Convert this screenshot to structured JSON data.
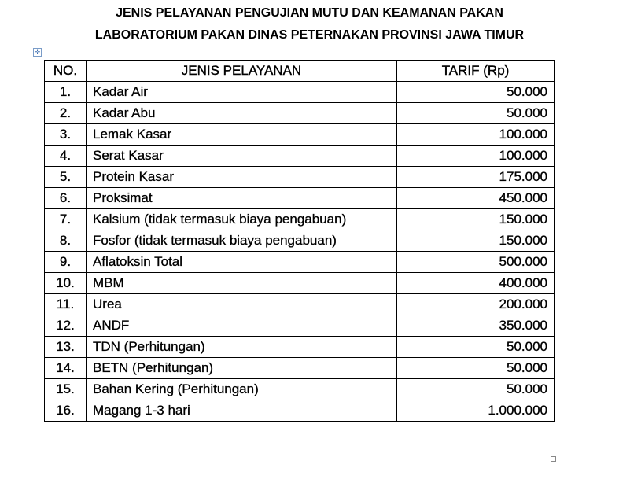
{
  "title": {
    "line1": "JENIS PELAYANAN PENGUJIAN MUTU DAN KEAMANAN PAKAN",
    "line2": "LABORATORIUM PAKAN DINAS PETERNAKAN  PROVINSI JAWA TIMUR"
  },
  "table": {
    "headers": [
      "NO.",
      "JENIS PELAYANAN",
      "TARIF (Rp)"
    ],
    "rows": [
      {
        "no": "1.",
        "name": "Kadar  Air",
        "price": "50.000"
      },
      {
        "no": "2.",
        "name": "Kadar  Abu",
        "price": "50.000"
      },
      {
        "no": "3.",
        "name": "Lemak Kasar",
        "price": "100.000"
      },
      {
        "no": "4.",
        "name": "Serat Kasar",
        "price": "100.000"
      },
      {
        "no": "5.",
        "name": "Protein Kasar",
        "price": "175.000"
      },
      {
        "no": "6.",
        "name": "Proksimat",
        "price": "450.000"
      },
      {
        "no": "7.",
        "name": "Kalsium  (tidak termasuk  biaya pengabuan)",
        "price": "150.000"
      },
      {
        "no": "8.",
        "name": "Fosfor (tidak termasuk biaya pengabuan)",
        "price": "150.000"
      },
      {
        "no": "9.",
        "name": "Aflatoksin  Total",
        "price": "500.000"
      },
      {
        "no": "10.",
        "name": "MBM",
        "price": "400.000"
      },
      {
        "no": "11.",
        "name": "Urea",
        "price": "200.000"
      },
      {
        "no": "12.",
        "name": "ANDF",
        "price": "350.000"
      },
      {
        "no": "13.",
        "name": "TDN (Perhitungan)",
        "price": "50.000"
      },
      {
        "no": "14.",
        "name": "BETN (Perhitungan)",
        "price": "50.000"
      },
      {
        "no": "15.",
        "name": "Bahan Kering (Perhitungan)",
        "price": "50.000"
      },
      {
        "no": "16.",
        "name": "Magang  1-3 hari",
        "price": "1.000.000"
      }
    ]
  },
  "icons": {
    "table_handle": "move-icon",
    "resize_handle": "resize-handle-icon"
  }
}
